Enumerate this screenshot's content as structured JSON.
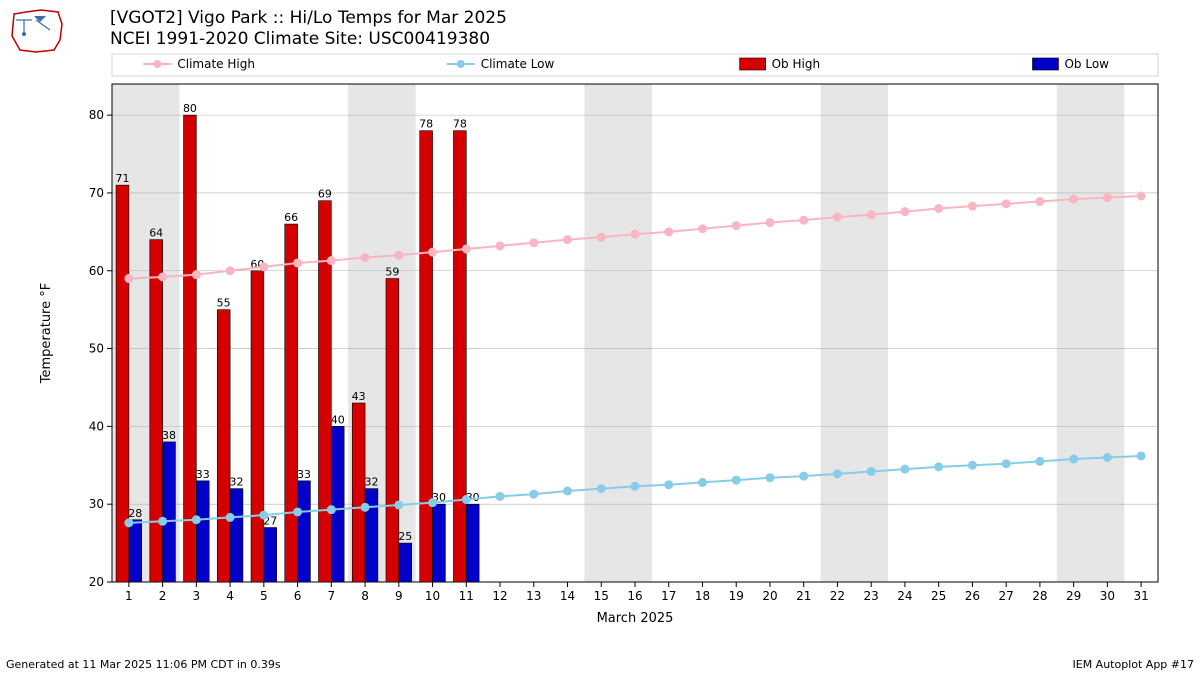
{
  "title_line1": "[VGOT2] Vigo Park :: Hi/Lo Temps for Mar 2025",
  "title_line2": "NCEI 1991-2020 Climate Site: USC00419380",
  "footer_left": "Generated at 11 Mar 2025 11:06 PM CDT in 0.39s",
  "footer_right": "IEM Autoplot App #17",
  "ylabel": "Temperature °F",
  "xlabel": "March 2025",
  "chart": {
    "type": "bar+line",
    "ylim": [
      20,
      84
    ],
    "ytick_step": 10,
    "yticks": [
      20,
      30,
      40,
      50,
      60,
      70,
      80
    ],
    "xlim": [
      0.5,
      31.5
    ],
    "xticks": [
      1,
      2,
      3,
      4,
      5,
      6,
      7,
      8,
      9,
      10,
      11,
      12,
      13,
      14,
      15,
      16,
      17,
      18,
      19,
      20,
      21,
      22,
      23,
      24,
      25,
      26,
      27,
      28,
      29,
      30,
      31
    ],
    "background_color": "#ffffff",
    "weekend_band_color": "#e6e6e6",
    "grid_color": "#b0b0b0",
    "weekend_bands": [
      [
        0.5,
        2.5
      ],
      [
        7.5,
        9.5
      ],
      [
        14.5,
        16.5
      ],
      [
        21.5,
        23.5
      ],
      [
        28.5,
        30.5
      ]
    ],
    "ob_high": {
      "color": "#d40000",
      "edge": "#000000",
      "values": [
        71,
        64,
        80,
        55,
        60,
        66,
        69,
        43,
        59,
        78,
        78
      ]
    },
    "ob_low": {
      "color": "#0000c8",
      "edge": "#000000",
      "values": [
        28,
        38,
        33,
        32,
        27,
        33,
        40,
        32,
        25,
        30,
        30
      ]
    },
    "climate_high": {
      "color": "#f7b6c2",
      "marker_r": 4,
      "values": [
        59.0,
        59.2,
        59.5,
        60.0,
        60.5,
        61.0,
        61.3,
        61.7,
        62.0,
        62.4,
        62.8,
        63.2,
        63.6,
        64.0,
        64.3,
        64.7,
        65.0,
        65.4,
        65.8,
        66.2,
        66.5,
        66.9,
        67.2,
        67.6,
        68.0,
        68.3,
        68.6,
        68.9,
        69.2,
        69.4,
        69.6
      ]
    },
    "climate_low": {
      "color": "#87cce8",
      "marker_r": 4,
      "values": [
        27.6,
        27.8,
        28.0,
        28.3,
        28.6,
        29.0,
        29.3,
        29.6,
        29.9,
        30.2,
        30.6,
        31.0,
        31.3,
        31.7,
        32.0,
        32.3,
        32.5,
        32.8,
        33.1,
        33.4,
        33.6,
        33.9,
        34.2,
        34.5,
        34.8,
        35.0,
        35.2,
        35.5,
        35.8,
        36.0,
        36.2
      ]
    },
    "legend": [
      {
        "label": "Climate High",
        "type": "line",
        "color": "#f7b6c2"
      },
      {
        "label": "Climate Low",
        "type": "line",
        "color": "#87cce8"
      },
      {
        "label": "Ob High",
        "type": "bar",
        "color": "#d40000"
      },
      {
        "label": "Ob Low",
        "type": "bar",
        "color": "#0000c8"
      }
    ],
    "bar_width": 0.38
  }
}
